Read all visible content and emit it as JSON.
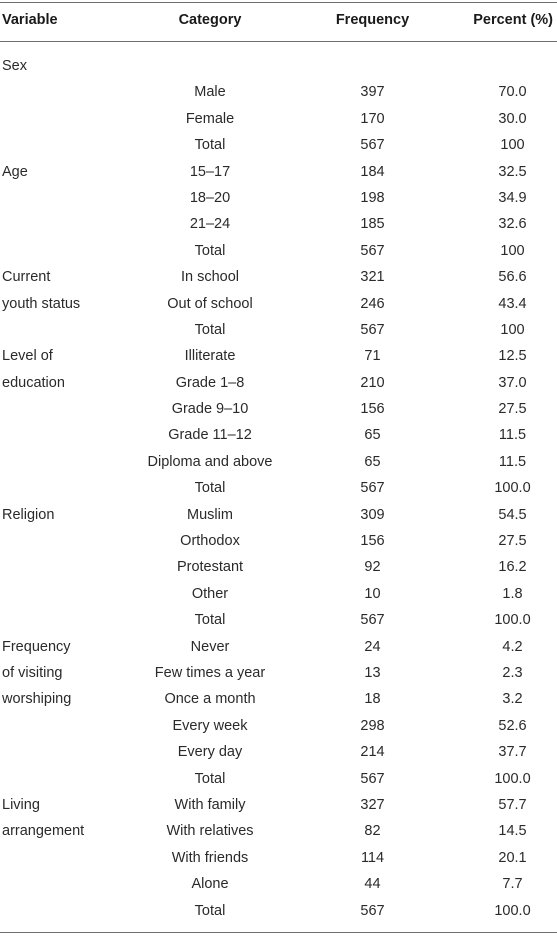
{
  "header": {
    "variable": "Variable",
    "category": "Category",
    "frequency": "Frequency",
    "percent": "Percent (%)"
  },
  "rows": [
    {
      "variable": "Sex",
      "category": "",
      "frequency": "",
      "percent": ""
    },
    {
      "variable": "",
      "category": "Male",
      "frequency": "397",
      "percent": "70.0"
    },
    {
      "variable": "",
      "category": "Female",
      "frequency": "170",
      "percent": "30.0"
    },
    {
      "variable": "",
      "category": "Total",
      "frequency": "567",
      "percent": "100"
    },
    {
      "variable": "Age",
      "category": "15–17",
      "frequency": "184",
      "percent": "32.5"
    },
    {
      "variable": "",
      "category": "18–20",
      "frequency": "198",
      "percent": "34.9"
    },
    {
      "variable": "",
      "category": "21–24",
      "frequency": "185",
      "percent": "32.6"
    },
    {
      "variable": "",
      "category": "Total",
      "frequency": "567",
      "percent": "100"
    },
    {
      "variable": "Current",
      "category": "In school",
      "frequency": "321",
      "percent": "56.6"
    },
    {
      "variable": "youth status",
      "category": "Out of school",
      "frequency": "246",
      "percent": "43.4"
    },
    {
      "variable": "",
      "category": "Total",
      "frequency": "567",
      "percent": "100"
    },
    {
      "variable": "Level of",
      "category": "Illiterate",
      "frequency": "71",
      "percent": "12.5"
    },
    {
      "variable": "education",
      "category": "Grade 1–8",
      "frequency": "210",
      "percent": "37.0"
    },
    {
      "variable": "",
      "category": "Grade 9–10",
      "frequency": "156",
      "percent": "27.5"
    },
    {
      "variable": "",
      "category": "Grade 11–12",
      "frequency": "65",
      "percent": "11.5"
    },
    {
      "variable": "",
      "category": "Diploma and above",
      "frequency": "65",
      "percent": "11.5"
    },
    {
      "variable": "",
      "category": "Total",
      "frequency": "567",
      "percent": "100.0"
    },
    {
      "variable": "Religion",
      "category": "Muslim",
      "frequency": "309",
      "percent": "54.5"
    },
    {
      "variable": "",
      "category": "Orthodox",
      "frequency": "156",
      "percent": "27.5"
    },
    {
      "variable": "",
      "category": "Protestant",
      "frequency": "92",
      "percent": "16.2"
    },
    {
      "variable": "",
      "category": "Other",
      "frequency": "10",
      "percent": "1.8"
    },
    {
      "variable": "",
      "category": "Total",
      "frequency": "567",
      "percent": "100.0"
    },
    {
      "variable": "Frequency",
      "category": "Never",
      "frequency": "24",
      "percent": "4.2"
    },
    {
      "variable": "of visiting",
      "category": "Few times a year",
      "frequency": "13",
      "percent": "2.3"
    },
    {
      "variable": "worshiping",
      "category": "Once a month",
      "frequency": "18",
      "percent": "3.2"
    },
    {
      "variable": "",
      "category": "Every week",
      "frequency": "298",
      "percent": "52.6"
    },
    {
      "variable": "",
      "category": "Every day",
      "frequency": "214",
      "percent": "37.7"
    },
    {
      "variable": "",
      "category": "Total",
      "frequency": "567",
      "percent": "100.0"
    },
    {
      "variable": "Living",
      "category": "With family",
      "frequency": "327",
      "percent": "57.7"
    },
    {
      "variable": "arrangement",
      "category": "With relatives",
      "frequency": "82",
      "percent": "14.5"
    },
    {
      "variable": "",
      "category": "With friends",
      "frequency": "114",
      "percent": "20.1"
    },
    {
      "variable": "",
      "category": "Alone",
      "frequency": "44",
      "percent": "7.7"
    },
    {
      "variable": "",
      "category": "Total",
      "frequency": "567",
      "percent": "100.0"
    }
  ]
}
